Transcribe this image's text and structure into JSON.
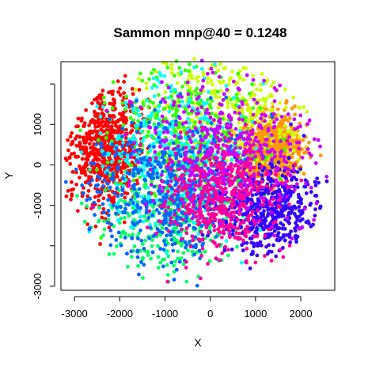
{
  "chart_data": {
    "type": "scatter",
    "title": "Sammon mnp@40 = 0.1248",
    "xlabel": "X",
    "ylabel": "Y",
    "xlim": [
      -3300,
      2750
    ],
    "ylim": [
      -3100,
      2550
    ],
    "x_ticks": [
      -3000,
      -2000,
      -1000,
      0,
      1000,
      2000
    ],
    "x_tick_labels": [
      "-3000",
      "-2000",
      "-1000",
      "0",
      "1000",
      "2000"
    ],
    "y_ticks": [
      -3000,
      -2000,
      -1000,
      0,
      1000,
      2000
    ],
    "y_tick_labels": [
      "-3000",
      "",
      "-1000",
      "0",
      "1000",
      ""
    ],
    "grid": false,
    "legend": "none",
    "point_colors": [
      "#FF0000",
      "#FF9900",
      "#CCFF00",
      "#33FF00",
      "#00FF66",
      "#00FFFF",
      "#0066FF",
      "#3300FF",
      "#CC00FF",
      "#FF0099"
    ],
    "clusters": [
      {
        "color": "#FF0000",
        "center": [
          -2300,
          400
        ],
        "spread": [
          380,
          750
        ],
        "count": 700
      },
      {
        "color": "#FF9900",
        "center": [
          1350,
          450
        ],
        "spread": [
          330,
          380
        ],
        "count": 700
      },
      {
        "color": "#CCFF00",
        "center": [
          600,
          1300
        ],
        "spread": [
          900,
          800
        ],
        "count": 350
      },
      {
        "color": "#33FF00",
        "center": [
          -600,
          700
        ],
        "spread": [
          800,
          900
        ],
        "count": 450
      },
      {
        "color": "#00FF66",
        "center": [
          -1000,
          -1300
        ],
        "spread": [
          800,
          700
        ],
        "count": 350
      },
      {
        "color": "#00FFFF",
        "center": [
          -800,
          200
        ],
        "spread": [
          800,
          900
        ],
        "count": 400
      },
      {
        "color": "#0066FF",
        "center": [
          -900,
          -600
        ],
        "spread": [
          900,
          900
        ],
        "count": 550
      },
      {
        "color": "#3300FF",
        "center": [
          1300,
          -1100
        ],
        "spread": [
          550,
          550
        ],
        "count": 500
      },
      {
        "color": "#CC00FF",
        "center": [
          500,
          500
        ],
        "spread": [
          1000,
          900
        ],
        "count": 450
      },
      {
        "color": "#FF0099",
        "center": [
          200,
          -900
        ],
        "spread": [
          600,
          700
        ],
        "count": 450
      }
    ]
  }
}
